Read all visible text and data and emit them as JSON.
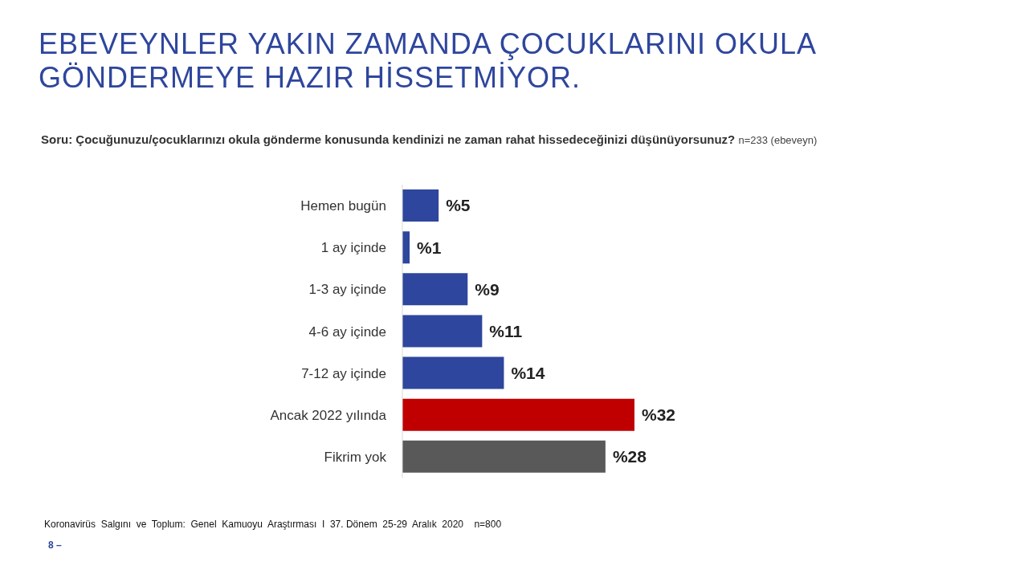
{
  "chart_data": {
    "type": "bar",
    "orientation": "horizontal",
    "title": "EBEVEYNLER YAKIN ZAMANDA ÇOCUKLARINI OKULA GÖNDERMEYE HAZIR HİSSETMİYOR.",
    "subtitle": "Soru: Çocuğunuzu/çocuklarınızı okula gönderme konusunda kendinizi ne zaman rahat hissedeceğinizi düşünüyorsunuz?",
    "annotations": [
      "n=233 (ebeveyn)",
      "Koronavirüs  Salgını  ve  Toplum:  Genel  Kamuoyu  Araştırması  I  37. Dönem  25-29  Aralık  2020    n=800",
      "8 –"
    ],
    "categories": [
      "Hemen bugün",
      "1 ay içinde",
      "1-3 ay içinde",
      "4-6 ay içinde",
      "7-12 ay içinde",
      "Ancak 2022 yılında",
      "Fikrim yok"
    ],
    "values": [
      5,
      1,
      9,
      11,
      14,
      32,
      28
    ],
    "colors": [
      "#2e469d",
      "#2e469d",
      "#2e469d",
      "#2e469d",
      "#2e469d",
      "#c00000",
      "#595959"
    ],
    "value_labels": [
      "%5",
      "%1",
      "%9",
      "%11",
      "%14",
      "%32",
      "%28"
    ]
  }
}
